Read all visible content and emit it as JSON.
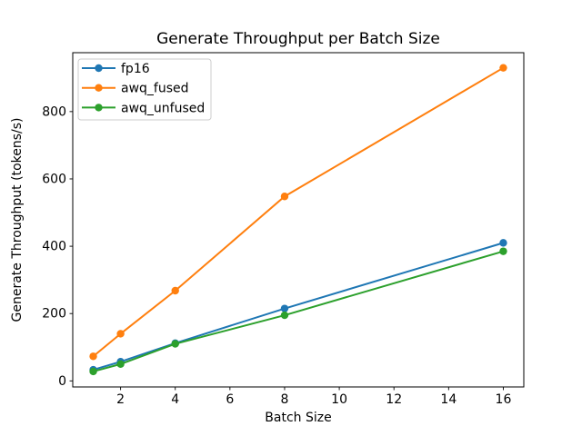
{
  "chart_data": {
    "type": "line",
    "title": "Generate Throughput per Batch Size",
    "xlabel": "Batch Size",
    "ylabel": "Generate Throughput (tokens/s)",
    "x": [
      1,
      2,
      4,
      8,
      16
    ],
    "series": [
      {
        "name": "fp16",
        "color": "#1f77b4",
        "values": [
          33,
          57,
          112,
          215,
          410
        ]
      },
      {
        "name": "awq_fused",
        "color": "#ff7f0e",
        "values": [
          73,
          140,
          268,
          548,
          930
        ]
      },
      {
        "name": "awq_unfused",
        "color": "#2ca02c",
        "values": [
          28,
          50,
          110,
          195,
          385
        ]
      }
    ],
    "xticks": [
      2,
      4,
      6,
      8,
      10,
      12,
      14,
      16
    ],
    "yticks": [
      0,
      200,
      400,
      600,
      800
    ],
    "xlim": [
      0.25,
      16.75
    ],
    "ylim": [
      -18,
      975
    ],
    "grid": false,
    "marker": "o",
    "legend_position": "upper left",
    "background_color": "#ffffff",
    "text_color": "#000000",
    "legend_border_color": "#cccccc"
  }
}
